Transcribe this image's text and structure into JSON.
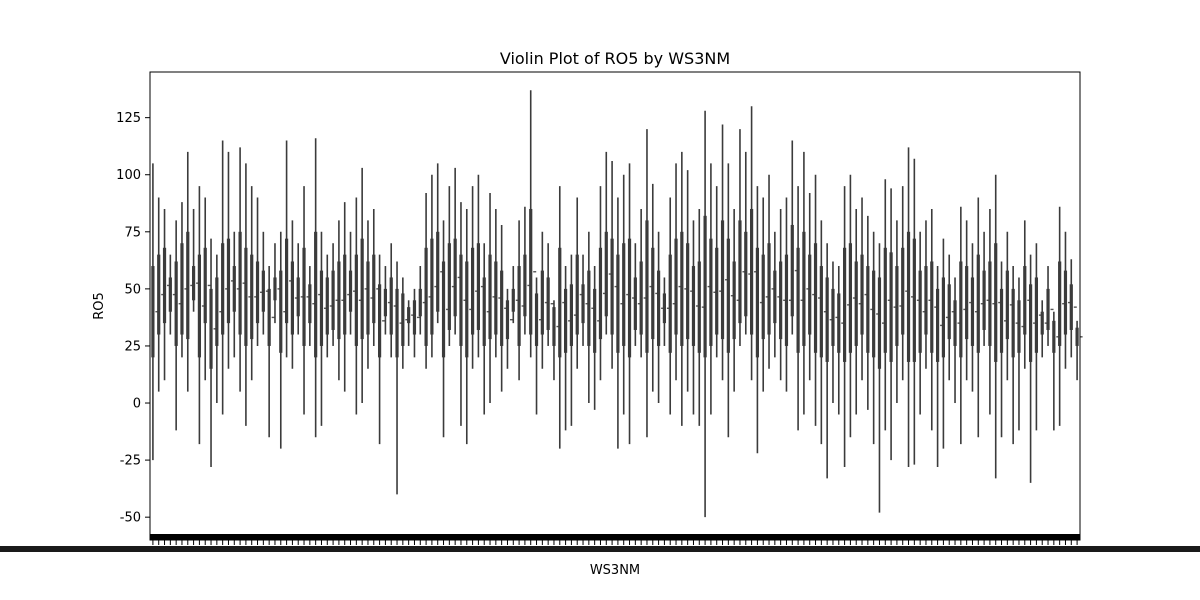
{
  "chart_data": {
    "type": "violin",
    "title": "Violin Plot of RO5 by WS3NM",
    "xlabel": "WS3NM",
    "ylabel": "RO5",
    "ylim": [
      -60,
      145
    ],
    "yticks": [
      -50,
      -25,
      0,
      25,
      50,
      75,
      100,
      125
    ],
    "grid": false,
    "legend": "none",
    "category_count": 160,
    "x_tick_labels_legible": false,
    "colors": {
      "violin": "#3b3b3b",
      "axes": "#000000",
      "background": "#ffffff"
    },
    "series": [
      {
        "values": {
          "min": [
            -25,
            5,
            10,
            30,
            -12,
            20,
            5,
            40,
            -18,
            10,
            -28,
            0,
            -5,
            15,
            20,
            5,
            -10,
            10,
            25,
            30,
            -15,
            35,
            -20,
            20,
            15,
            30,
            -5,
            25,
            -15,
            -10,
            20,
            25,
            10,
            5,
            30,
            -5,
            0,
            15,
            25,
            -18,
            30,
            20,
            -40,
            15,
            25,
            20,
            30,
            15,
            20,
            35,
            -15,
            25,
            30,
            -10,
            -18,
            15,
            20,
            -5,
            0,
            20,
            5,
            15,
            35,
            10,
            30,
            20,
            -5,
            15,
            25,
            10,
            -20,
            -12,
            -10,
            15,
            25,
            0,
            -3,
            10,
            30,
            15,
            -20,
            -5,
            -18,
            25,
            20,
            -15,
            5,
            0,
            25,
            -5,
            10,
            -10,
            5,
            -5,
            -10,
            -50,
            -5,
            20,
            10,
            -15,
            5,
            25,
            30,
            10,
            -22,
            5,
            15,
            20,
            10,
            5,
            30,
            -12,
            -5,
            10,
            -10,
            -18,
            -33,
            0,
            -5,
            -28,
            -15,
            -5,
            10,
            -3,
            -18,
            -48,
            -12,
            -25,
            0,
            10,
            -28,
            -27,
            -5,
            15,
            -12,
            -28,
            -20,
            10,
            0,
            -18,
            10,
            5,
            -15,
            25,
            -5,
            -33,
            -15,
            10,
            -18,
            -12,
            15,
            -35,
            -12,
            20,
            25,
            -12,
            -10,
            15,
            20,
            10
          ],
          "max": [
            105,
            90,
            85,
            65,
            80,
            88,
            110,
            85,
            95,
            90,
            72,
            65,
            115,
            110,
            75,
            112,
            105,
            95,
            90,
            75,
            60,
            70,
            75,
            115,
            80,
            70,
            95,
            60,
            116,
            75,
            65,
            70,
            80,
            88,
            75,
            90,
            103,
            80,
            85,
            65,
            60,
            70,
            62,
            55,
            45,
            50,
            60,
            92,
            100,
            105,
            80,
            95,
            103,
            88,
            85,
            95,
            100,
            70,
            92,
            85,
            78,
            50,
            60,
            80,
            86,
            137,
            55,
            75,
            70,
            45,
            95,
            60,
            65,
            90,
            65,
            75,
            60,
            95,
            110,
            106,
            90,
            100,
            105,
            70,
            85,
            120,
            96,
            75,
            55,
            90,
            105,
            110,
            102,
            80,
            85,
            128,
            105,
            95,
            122,
            105,
            85,
            120,
            110,
            130,
            95,
            90,
            100,
            75,
            85,
            90,
            115,
            95,
            110,
            92,
            100,
            80,
            70,
            62,
            60,
            95,
            100,
            85,
            90,
            82,
            75,
            70,
            98,
            94,
            80,
            95,
            112,
            107,
            75,
            80,
            85,
            60,
            72,
            65,
            55,
            86,
            80,
            70,
            90,
            75,
            85,
            100,
            62,
            75,
            60,
            55,
            80,
            65,
            70,
            45,
            60,
            40,
            86,
            75,
            63,
            36
          ],
          "q1": [
            20,
            30,
            35,
            40,
            25,
            30,
            28,
            45,
            20,
            35,
            15,
            25,
            30,
            35,
            40,
            30,
            25,
            28,
            35,
            40,
            25,
            45,
            22,
            35,
            30,
            38,
            25,
            35,
            20,
            25,
            30,
            32,
            28,
            30,
            40,
            25,
            28,
            30,
            35,
            20,
            38,
            30,
            20,
            25,
            35,
            30,
            38,
            25,
            30,
            40,
            20,
            32,
            38,
            25,
            20,
            30,
            32,
            25,
            28,
            30,
            25,
            28,
            40,
            25,
            38,
            30,
            25,
            30,
            32,
            25,
            20,
            22,
            25,
            30,
            35,
            25,
            22,
            28,
            38,
            30,
            22,
            25,
            20,
            32,
            30,
            22,
            28,
            25,
            35,
            22,
            30,
            25,
            28,
            25,
            22,
            20,
            25,
            30,
            28,
            22,
            28,
            35,
            38,
            30,
            20,
            28,
            30,
            35,
            28,
            25,
            38,
            22,
            25,
            30,
            22,
            20,
            18,
            25,
            22,
            18,
            22,
            25,
            30,
            22,
            20,
            15,
            22,
            18,
            25,
            30,
            18,
            18,
            22,
            30,
            22,
            18,
            20,
            28,
            25,
            20,
            28,
            25,
            22,
            32,
            25,
            18,
            22,
            28,
            20,
            22,
            30,
            18,
            22,
            30,
            32,
            22,
            25,
            30,
            32,
            25
          ],
          "q3": [
            60,
            65,
            68,
            55,
            62,
            70,
            75,
            60,
            65,
            68,
            50,
            55,
            70,
            72,
            60,
            75,
            68,
            65,
            62,
            58,
            50,
            55,
            58,
            72,
            62,
            55,
            68,
            52,
            75,
            58,
            55,
            58,
            62,
            65,
            58,
            65,
            72,
            62,
            65,
            52,
            50,
            55,
            50,
            48,
            42,
            45,
            50,
            68,
            72,
            75,
            62,
            70,
            72,
            65,
            62,
            68,
            70,
            55,
            65,
            62,
            58,
            45,
            50,
            60,
            65,
            85,
            48,
            58,
            55,
            42,
            68,
            50,
            52,
            65,
            52,
            58,
            50,
            68,
            75,
            72,
            65,
            70,
            72,
            55,
            62,
            80,
            68,
            58,
            48,
            65,
            72,
            75,
            70,
            60,
            62,
            82,
            72,
            68,
            80,
            72,
            62,
            80,
            75,
            85,
            68,
            65,
            70,
            58,
            62,
            65,
            78,
            68,
            75,
            65,
            70,
            60,
            55,
            50,
            48,
            68,
            70,
            62,
            65,
            60,
            58,
            55,
            68,
            66,
            60,
            68,
            75,
            72,
            58,
            60,
            62,
            50,
            55,
            52,
            45,
            62,
            60,
            55,
            65,
            58,
            62,
            70,
            50,
            58,
            50,
            45,
            60,
            52,
            55,
            40,
            50,
            36,
            62,
            58,
            52,
            33
          ]
        }
      }
    ]
  }
}
